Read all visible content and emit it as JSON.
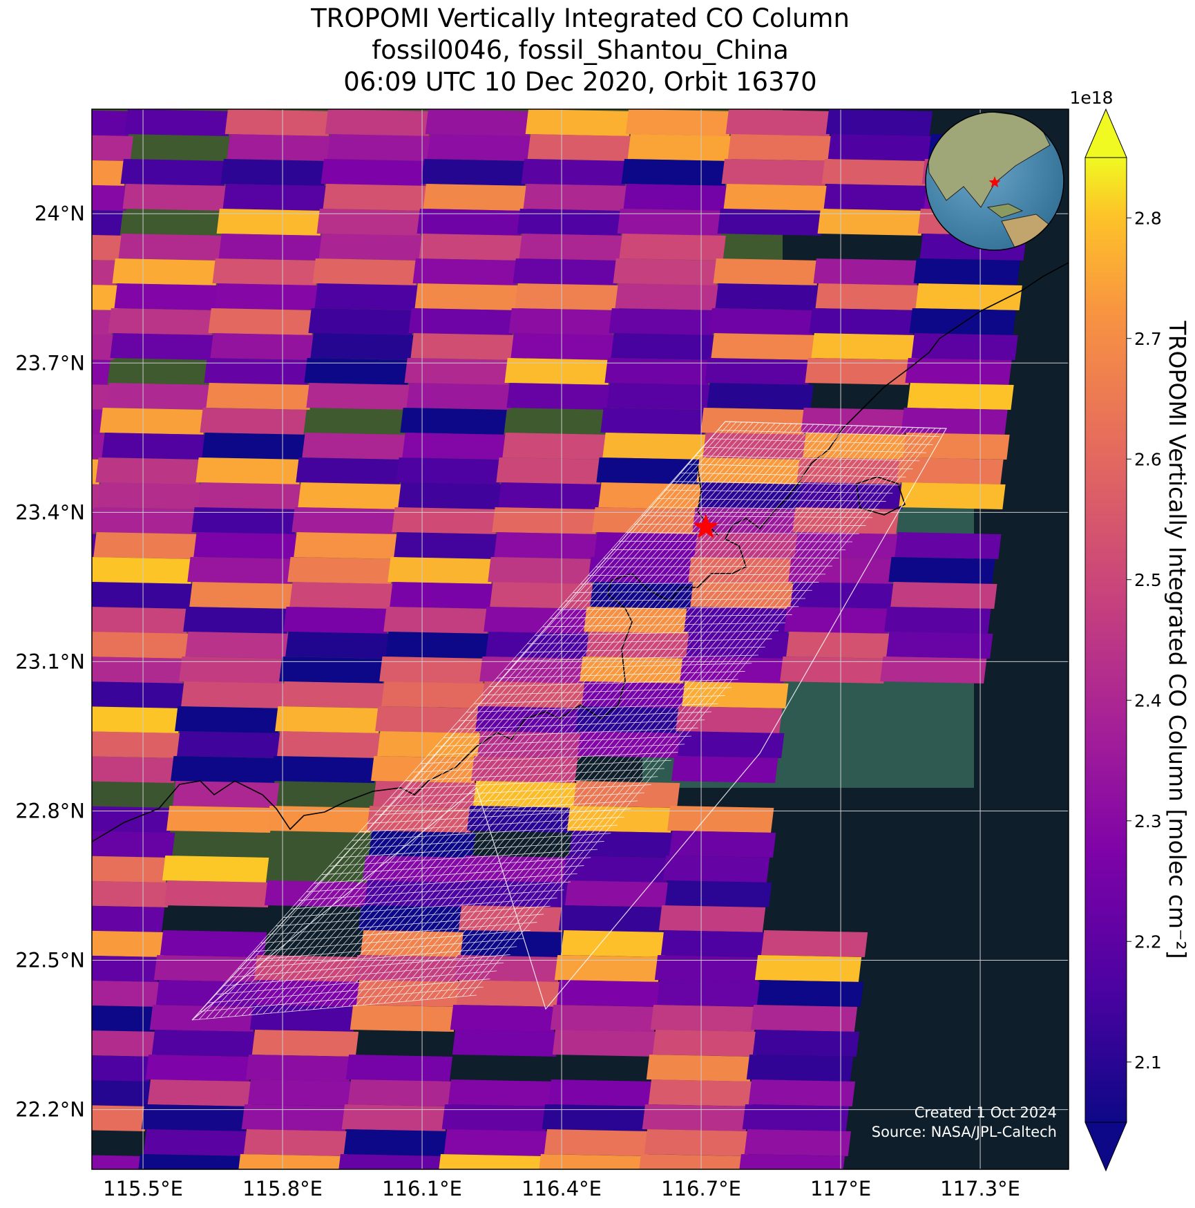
{
  "title": {
    "line1": "TROPOMI Vertically Integrated CO Column",
    "line2": "fossil0046, fossil_Shantou_China",
    "line3": "06:09 UTC 10 Dec 2020, Orbit 16370"
  },
  "map": {
    "lon_range": [
      115.39,
      117.49
    ],
    "lat_range": [
      22.08,
      24.21
    ],
    "lon_ticks": [
      115.5,
      115.8,
      116.1,
      116.4,
      116.7,
      117.0,
      117.3
    ],
    "lon_tick_labels": [
      "115.5°E",
      "115.8°E",
      "116.1°E",
      "116.4°E",
      "116.7°E",
      "117°E",
      "117.3°E"
    ],
    "lat_ticks": [
      22.2,
      22.5,
      22.8,
      23.1,
      23.4,
      23.7,
      24.0
    ],
    "lat_tick_labels": [
      "22.2°N",
      "22.5°N",
      "22.8°N",
      "23.1°N",
      "23.4°N",
      "23.7°N",
      "24°N"
    ],
    "grid": true,
    "target_marker": {
      "label": "fossil_Shantou_China",
      "lon": 116.71,
      "lat": 23.37,
      "symbol": "red-star"
    },
    "inset_globe": "top-right",
    "background": "satellite imagery"
  },
  "colorbar": {
    "label": "TROPOMI Vertically Integrated CO Column [molec cm⁻²]",
    "scale_label": "1e18",
    "colormap": "plasma",
    "vmin": 2.05,
    "vmax": 2.85,
    "ticks": [
      2.1,
      2.2,
      2.3,
      2.4,
      2.5,
      2.6,
      2.7,
      2.8
    ],
    "tick_labels": [
      "2.1",
      "2.2",
      "2.3",
      "2.4",
      "2.5",
      "2.6",
      "2.7",
      "2.8"
    ],
    "extend": "both"
  },
  "credits": {
    "created": "Created 1 Oct 2024",
    "source": "Source: NASA/JPL-Caltech"
  }
}
